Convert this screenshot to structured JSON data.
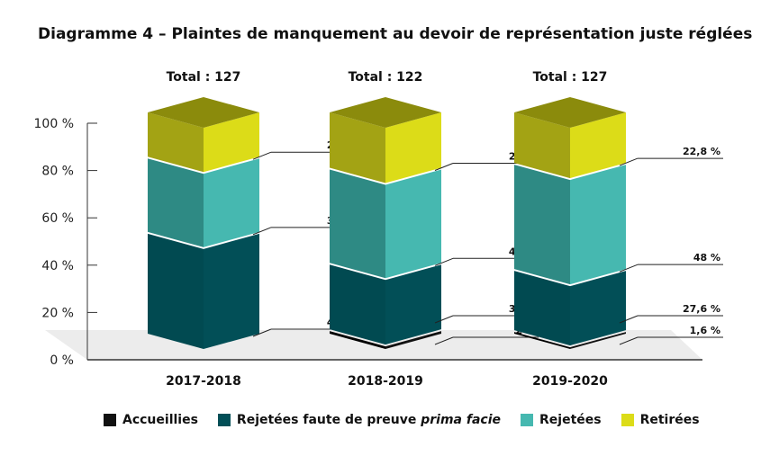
{
  "chart_data": {
    "type": "bar",
    "stacked": true,
    "title": "Diagramme 4 – Plaintes de manquement au devoir de représentation juste réglées",
    "categories": [
      "2017-2018",
      "2018-2019",
      "2019-2020"
    ],
    "totals": [
      "Total : 127",
      "Total : 122",
      "Total : 127"
    ],
    "ylim": [
      0,
      100
    ],
    "yticks": [
      "0 %",
      "20 %",
      "40 %",
      "60 %",
      "80 %",
      "100 %"
    ],
    "series": [
      {
        "name": "Accueillies",
        "values": [
          0,
          2,
          1.6
        ],
        "labels": [
          "",
          "2 %",
          "1,6 %"
        ],
        "color": "#111111",
        "side": "#000000"
      },
      {
        "name": "Rejetées faute de preuve prima facie",
        "values": [
          46,
          30,
          27.6
        ],
        "labels": [
          "46 %",
          "30 %",
          "27,6 %"
        ],
        "color": "#024f57",
        "side": "#014a51"
      },
      {
        "name": "Rejetées",
        "values": [
          34,
          43,
          48
        ],
        "labels": [
          "34 %",
          "43 %",
          "48 %"
        ],
        "color": "#46b8b0",
        "side": "#2e8a84"
      },
      {
        "name": "Retirées",
        "values": [
          20,
          25,
          22.8
        ],
        "labels": [
          "20 %",
          "25 %",
          "22,8 %"
        ],
        "color": "#dcdc18",
        "side": "#a3a314",
        "top": "#8b8b0c"
      }
    ],
    "legend_position": "bottom",
    "grid": false
  }
}
